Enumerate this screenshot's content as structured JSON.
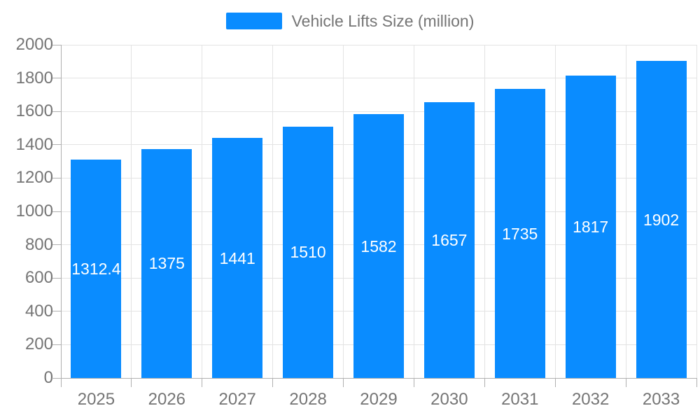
{
  "legend": {
    "label": "Vehicle Lifts Size (million)"
  },
  "chart_data": {
    "type": "bar",
    "title": "Vehicle Lifts Size (million)",
    "categories": [
      "2025",
      "2026",
      "2027",
      "2028",
      "2029",
      "2030",
      "2031",
      "2032",
      "2033"
    ],
    "values": [
      1312.4,
      1375,
      1441,
      1510,
      1582,
      1657,
      1735,
      1817,
      1902
    ],
    "value_labels": [
      "1312.4",
      "1375",
      "1441",
      "1510",
      "1582",
      "1657",
      "1735",
      "1817",
      "1902"
    ],
    "xlabel": "",
    "ylabel": "",
    "ylim": [
      0,
      2000
    ],
    "ytick_step": 200,
    "ytick_labels": [
      "0",
      "200",
      "400",
      "600",
      "800",
      "1000",
      "1200",
      "1400",
      "1600",
      "1800",
      "2000"
    ],
    "grid": true,
    "legend_position": "top-center",
    "bar_color": "#0a8cff",
    "value_label_color": "#ffffff",
    "axis_text_color": "#757575",
    "grid_color": "#e3e3e3",
    "axis_line_color": "#b0b0b0"
  }
}
